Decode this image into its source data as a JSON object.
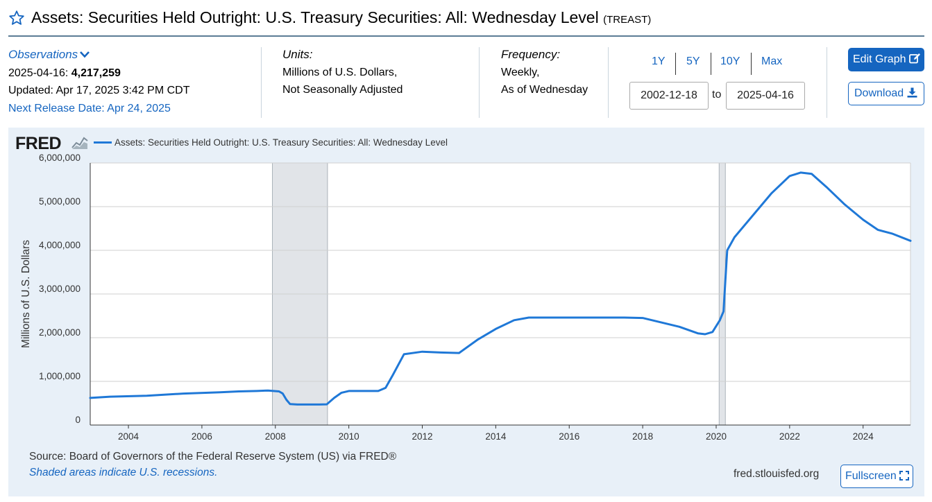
{
  "header": {
    "title": "Assets: Securities Held Outright: U.S. Treasury Securities: All: Wednesday Level",
    "series_code": "(TREAST)"
  },
  "observations": {
    "label": "Observations",
    "date": "2025-04-16:",
    "value": "4,217,259",
    "updated": "Updated: Apr 17, 2025 3:42 PM CDT",
    "next_release": "Next Release Date: Apr 24, 2025"
  },
  "units": {
    "label": "Units:",
    "line1": "Millions of U.S. Dollars,",
    "line2": "Not Seasonally Adjusted"
  },
  "frequency": {
    "label": "Frequency:",
    "line1": "Weekly,",
    "line2": "As of Wednesday"
  },
  "range": {
    "buttons": [
      "1Y",
      "5Y",
      "10Y",
      "Max"
    ],
    "start": "2002-12-18",
    "to": "to",
    "end": "2025-04-16"
  },
  "actions": {
    "edit_graph": "Edit Graph",
    "download": "Download",
    "fullscreen": "Fullscreen"
  },
  "footer": {
    "source": "Source: Board of Governors of the Federal Reserve System (US) via FRED®",
    "recession_note": "Shaded areas indicate U.S. recessions.",
    "url": "fred.stlouisfed.org"
  },
  "colors": {
    "series": "#1f78d7",
    "accent": "#1565c0",
    "recession": "#e1e4e8",
    "panel": "#e8f0f8"
  },
  "logo_text": "FRED",
  "chart_data": {
    "type": "line",
    "title": "",
    "legend": [
      "Assets: Securities Held Outright: U.S. Treasury Securities: All: Wednesday Level"
    ],
    "xlabel": "",
    "ylabel": "Millions of U.S. Dollars",
    "xlim": [
      2002.96,
      2025.29
    ],
    "ylim": [
      0,
      6000000
    ],
    "x_ticks": [
      2004,
      2006,
      2008,
      2010,
      2012,
      2014,
      2016,
      2018,
      2020,
      2022,
      2024
    ],
    "x_tick_labels": [
      "2004",
      "2006",
      "2008",
      "2010",
      "2012",
      "2014",
      "2016",
      "2018",
      "2020",
      "2022",
      "2024"
    ],
    "y_ticks": [
      0,
      1000000,
      2000000,
      3000000,
      4000000,
      5000000,
      6000000
    ],
    "y_tick_labels": [
      "0",
      "1,000,000",
      "2,000,000",
      "3,000,000",
      "4,000,000",
      "5,000,000",
      "6,000,000"
    ],
    "grid": true,
    "recessions": [
      [
        2007.92,
        2009.42
      ],
      [
        2020.08,
        2020.25
      ]
    ],
    "series": [
      {
        "name": "Assets: Securities Held Outright: U.S. Treasury Securities: All: Wednesday Level",
        "x": [
          2002.96,
          2003.5,
          2004.5,
          2005.5,
          2006.5,
          2007.0,
          2007.5,
          2007.8,
          2008.1,
          2008.2,
          2008.3,
          2008.4,
          2008.6,
          2009.0,
          2009.2,
          2009.4,
          2009.6,
          2009.8,
          2010.0,
          2010.3,
          2010.8,
          2011.0,
          2011.2,
          2011.5,
          2012.0,
          2012.5,
          2013.0,
          2013.5,
          2014.0,
          2014.5,
          2014.9,
          2015.5,
          2016.5,
          2017.5,
          2018.0,
          2018.5,
          2019.0,
          2019.5,
          2019.7,
          2019.9,
          2020.1,
          2020.15,
          2020.2,
          2020.25,
          2020.3,
          2020.5,
          2021.0,
          2021.5,
          2022.0,
          2022.3,
          2022.6,
          2023.0,
          2023.5,
          2024.0,
          2024.4,
          2024.8,
          2025.29
        ],
        "values": [
          620000,
          650000,
          670000,
          720000,
          750000,
          770000,
          780000,
          790000,
          770000,
          720000,
          580000,
          480000,
          470000,
          470000,
          470000,
          475000,
          620000,
          740000,
          780000,
          780000,
          780000,
          850000,
          1150000,
          1620000,
          1680000,
          1660000,
          1650000,
          1950000,
          2200000,
          2400000,
          2460000,
          2460000,
          2460000,
          2460000,
          2450000,
          2350000,
          2250000,
          2100000,
          2080000,
          2130000,
          2400000,
          2500000,
          2600000,
          3300000,
          4000000,
          4300000,
          4800000,
          5300000,
          5700000,
          5780000,
          5750000,
          5450000,
          5050000,
          4700000,
          4470000,
          4380000,
          4217259
        ]
      }
    ]
  }
}
